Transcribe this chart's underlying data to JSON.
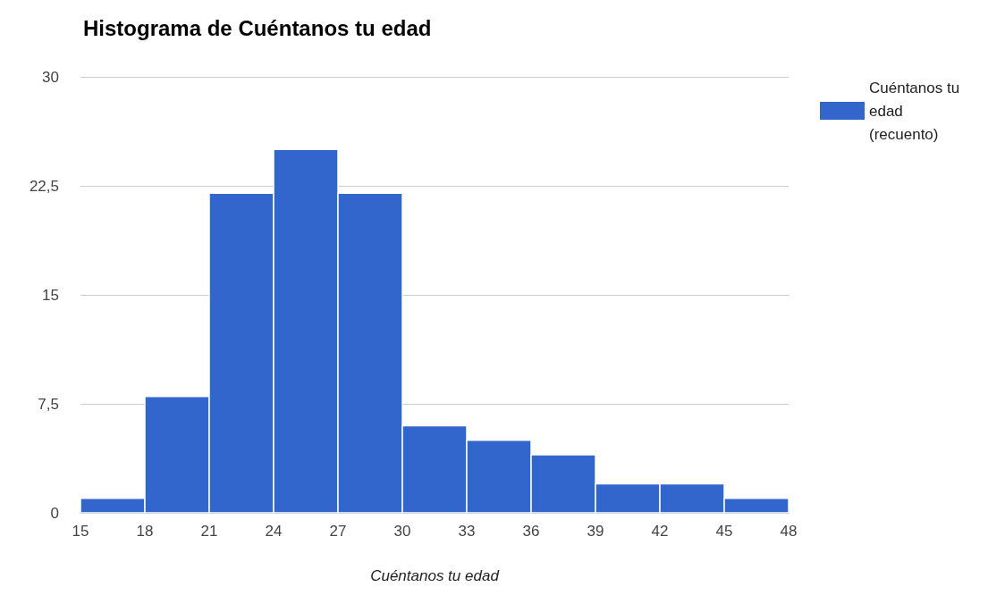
{
  "chart_data": {
    "type": "histogram",
    "title": "Histograma de Cuéntanos tu edad",
    "xlabel": "Cuéntanos tu edad",
    "bins": [
      15,
      18,
      21,
      24,
      27,
      30,
      33,
      36,
      39,
      42,
      45,
      48
    ],
    "series": [
      {
        "name": "Cuéntanos tu edad (recuento)",
        "color": "#3366cc",
        "values": [
          1,
          8,
          22,
          25,
          22,
          6,
          5,
          4,
          2,
          2,
          1
        ]
      }
    ],
    "xlim": [
      15,
      48
    ],
    "xticks": [
      15,
      18,
      21,
      24,
      27,
      30,
      33,
      36,
      39,
      42,
      45,
      48
    ],
    "ylim": [
      0,
      30
    ],
    "yticks": [
      0,
      {
        "value": 7.5,
        "label": "7,5"
      },
      15,
      {
        "value": 22.5,
        "label": "22,5"
      },
      30
    ],
    "grid": "y",
    "legend": "top right"
  }
}
